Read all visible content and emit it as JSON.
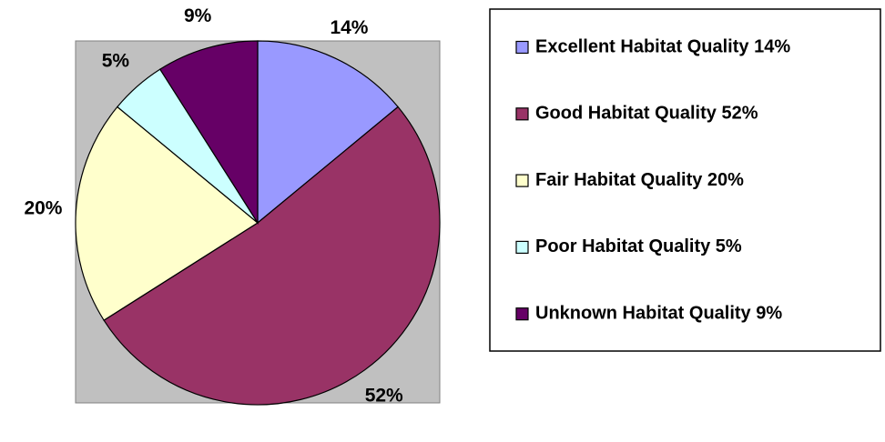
{
  "chart_data": {
    "type": "pie",
    "categories": [
      "Excellent Habitat Quality 14%",
      "Good Habitat Quality 52%",
      "Fair Habitat Quality 20%",
      "Poor Habitat Quality 5%",
      "Unknown Habitat Quality 9%"
    ],
    "values": [
      14,
      52,
      20,
      5,
      9
    ],
    "value_labels": [
      "14%",
      "52%",
      "20%",
      "5%",
      "9%"
    ],
    "colors": [
      "#9999ff",
      "#993366",
      "#ffffcc",
      "#ccffff",
      "#660066"
    ],
    "legend": "right"
  }
}
